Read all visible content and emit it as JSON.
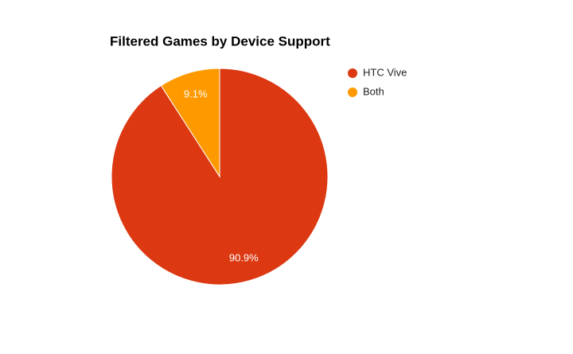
{
  "chart_data": {
    "type": "pie",
    "title": "Filtered Games by Device Support",
    "categories": [
      "HTC Vive",
      "Both"
    ],
    "values": [
      90.9,
      9.1
    ],
    "value_labels": [
      "90.9%",
      "9.1%"
    ],
    "colors": [
      "#dc3912",
      "#ff9900"
    ],
    "legend": "right"
  }
}
